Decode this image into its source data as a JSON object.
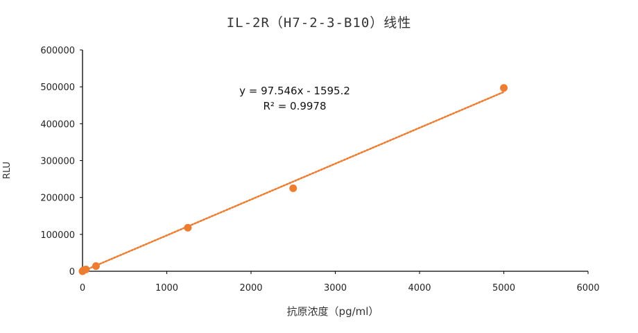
{
  "chart_data": {
    "type": "scatter",
    "title": "IL-2R（H7-2-3-B10）线性",
    "xlabel": "抗原浓度（pg/ml）",
    "ylabel": "RLU",
    "xlim": [
      0,
      6000
    ],
    "ylim": [
      0,
      600000
    ],
    "x_ticks": [
      "0",
      "1000",
      "2000",
      "3000",
      "4000",
      "5000",
      "6000"
    ],
    "y_ticks": [
      "0",
      "100000",
      "200000",
      "300000",
      "400000",
      "500000",
      "600000"
    ],
    "grid": false,
    "point_color": "#ED7D31",
    "trendline_color": "#ED7D31",
    "series": [
      {
        "x": [
          0,
          10,
          40,
          160,
          1250,
          2500,
          5000
        ],
        "y": [
          0,
          2500,
          5000,
          14000,
          118000,
          225000,
          497000
        ]
      }
    ],
    "trendline": {
      "type": "linear",
      "slope": 97.546,
      "intercept": -1595.2,
      "equation": "y = 97.546x - 1595.2",
      "r2": "R² = 0.9978"
    }
  }
}
